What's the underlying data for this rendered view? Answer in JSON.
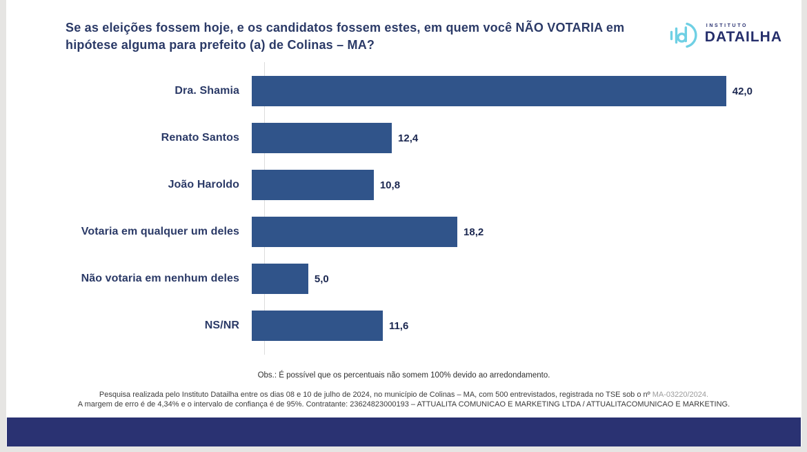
{
  "header": {
    "title": "Se as eleições fossem hoje, e os candidatos fossem estes, em quem você NÃO VOTARIA em hipótese alguma para prefeito (a) de Colinas – MA?",
    "logo": {
      "top": "INSTITUTO",
      "name": "DATAILHA"
    }
  },
  "chart_data": {
    "type": "bar",
    "orientation": "horizontal",
    "categories": [
      "Dra. Shamia",
      "Renato Santos",
      "João Haroldo",
      "Votaria em qualquer um deles",
      "Não votaria em nenhum deles",
      "NS/NR"
    ],
    "values": [
      42.0,
      12.4,
      10.8,
      18.2,
      5.0,
      11.6
    ],
    "value_labels": [
      "42,0",
      "12,4",
      "10,8",
      "18,2",
      "5,0",
      "11,6"
    ],
    "title": "",
    "xlabel": "",
    "ylabel": "",
    "xlim": [
      0,
      48
    ],
    "grid": false,
    "legend": false,
    "bar_color": "#30548A"
  },
  "notes": {
    "obs": "Obs.: É possível que os percentuais não somem 100% devido ao arredondamento.",
    "footnote_line1_main": "Pesquisa realizada pelo Instituto Datailha entre os dias 08 e 10 de julho de 2024, no município de Colinas – MA, com 500 entrevistados, registrada no TSE sob o nº ",
    "footnote_line1_registration": "MA-03220/2024.",
    "footnote_line2": "A margem de erro é de 4,34% e o intervalo de confiança é de 95%.  Contratante: 23624823000193 – ATTUALITA COMUNICAO E MARKETING LTDA / ATTUALITACOMUNICAO E MARKETING."
  },
  "colors": {
    "bar": "#30548A",
    "title_text": "#2B3A67",
    "footer_bar": "#2A3272",
    "logo_cyan": "#6FD0E4",
    "logo_navy": "#252E6B",
    "registration_gray": "#9B9B9B",
    "axis_line": "#DCDCDC"
  }
}
